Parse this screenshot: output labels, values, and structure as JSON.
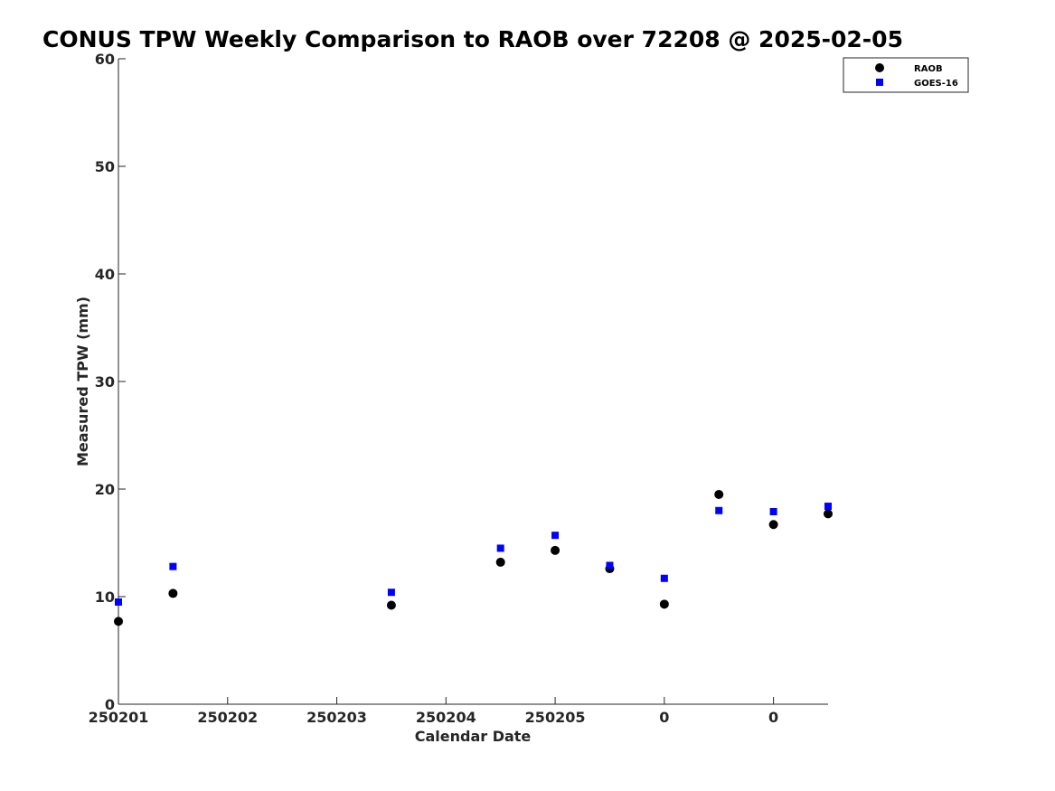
{
  "chart_data": {
    "type": "scatter",
    "title": "CONUS TPW Weekly Comparison to RAOB over 72208 @ 2025-02-05",
    "xlabel": "Calendar Date",
    "ylabel": "Measured TPW (mm)",
    "ylim": [
      0,
      60
    ],
    "yticks": [
      0,
      10,
      20,
      30,
      40,
      50,
      60
    ],
    "xlim": [
      0,
      13
    ],
    "xticks": [
      {
        "x": 0,
        "label": "250201"
      },
      {
        "x": 2,
        "label": "250202"
      },
      {
        "x": 4,
        "label": "250203"
      },
      {
        "x": 6,
        "label": "250204"
      },
      {
        "x": 8,
        "label": "250205"
      },
      {
        "x": 10,
        "label": "0"
      },
      {
        "x": 12,
        "label": "0"
      }
    ],
    "grid": false,
    "legend_position": "top-right",
    "series": [
      {
        "name": "RAOB",
        "marker": "circle",
        "color": "#000000",
        "x": [
          0,
          1,
          5,
          7,
          8,
          9,
          10,
          11,
          12,
          13
        ],
        "y": [
          7.7,
          10.3,
          9.2,
          13.2,
          14.3,
          12.6,
          9.3,
          19.5,
          16.7,
          17.7
        ]
      },
      {
        "name": "GOES-16",
        "marker": "square",
        "color": "#0000ff",
        "x": [
          0,
          1,
          5,
          7,
          8,
          9,
          10,
          11,
          12,
          13
        ],
        "y": [
          9.5,
          12.8,
          10.4,
          14.5,
          15.7,
          12.9,
          11.7,
          18.0,
          17.9,
          18.4
        ]
      }
    ]
  }
}
